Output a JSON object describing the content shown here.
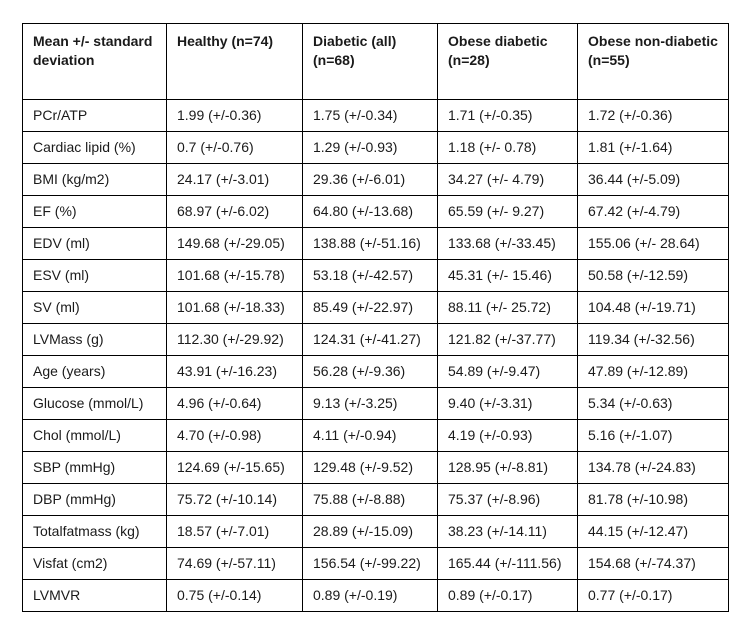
{
  "table": {
    "columns": [
      "Mean +/- standard deviation",
      "Healthy (n=74)",
      "Diabetic (all) (n=68)",
      "Obese diabetic (n=28)",
      "Obese non-diabetic (n=55)"
    ],
    "rows": [
      {
        "label": "PCr/ATP",
        "values": [
          "1.99 (+/-0.36)",
          "1.75 (+/-0.34)",
          "1.71 (+/-0.35)",
          "1.72 (+/-0.36)"
        ]
      },
      {
        "label": "Cardiac lipid (%)",
        "values": [
          "0.7 (+/-0.76)",
          "1.29 (+/-0.93)",
          "1.18 (+/- 0.78)",
          "1.81 (+/-1.64)"
        ]
      },
      {
        "label": "BMI (kg/m2)",
        "values": [
          "24.17 (+/-3.01)",
          "29.36 (+/-6.01)",
          "34.27 (+/- 4.79)",
          "36.44 (+/-5.09)"
        ]
      },
      {
        "label": "EF (%)",
        "values": [
          "68.97 (+/-6.02)",
          "64.80 (+/-13.68)",
          "65.59 (+/- 9.27)",
          "67.42 (+/-4.79)"
        ]
      },
      {
        "label": "EDV (ml)",
        "values": [
          "149.68 (+/-29.05)",
          "138.88 (+/-51.16)",
          "133.68 (+/-33.45)",
          "155.06 (+/- 28.64)"
        ]
      },
      {
        "label": "ESV (ml)",
        "values": [
          "101.68 (+/-15.78)",
          "53.18 (+/-42.57)",
          "45.31 (+/- 15.46)",
          "50.58 (+/-12.59)"
        ]
      },
      {
        "label": "SV (ml)",
        "values": [
          "101.68 (+/-18.33)",
          "85.49 (+/-22.97)",
          "88.11 (+/- 25.72)",
          "104.48 (+/-19.71)"
        ]
      },
      {
        "label": "LVMass (g)",
        "values": [
          "112.30 (+/-29.92)",
          "124.31 (+/-41.27)",
          "121.82 (+/-37.77)",
          "119.34 (+/-32.56)"
        ]
      },
      {
        "label": "Age (years)",
        "values": [
          "43.91 (+/-16.23)",
          "56.28 (+/-9.36)",
          "54.89 (+/-9.47)",
          "47.89 (+/-12.89)"
        ]
      },
      {
        "label": "Glucose (mmol/L)",
        "values": [
          "4.96 (+/-0.64)",
          "9.13 (+/-3.25)",
          "9.40 (+/-3.31)",
          "5.34 (+/-0.63)"
        ]
      },
      {
        "label": "Chol (mmol/L)",
        "values": [
          "4.70 (+/-0.98)",
          "4.11 (+/-0.94)",
          "4.19 (+/-0.93)",
          "5.16 (+/-1.07)"
        ]
      },
      {
        "label": "SBP (mmHg)",
        "values": [
          "124.69 (+/-15.65)",
          "129.48 (+/-9.52)",
          "128.95 (+/-8.81)",
          "134.78 (+/-24.83)"
        ]
      },
      {
        "label": "DBP (mmHg)",
        "values": [
          "75.72 (+/-10.14)",
          "75.88 (+/-8.88)",
          "75.37 (+/-8.96)",
          "81.78 (+/-10.98)"
        ]
      },
      {
        "label": "Totalfatmass (kg)",
        "values": [
          "18.57 (+/-7.01)",
          "28.89 (+/-15.09)",
          "38.23 (+/-14.11)",
          "44.15 (+/-12.47)"
        ]
      },
      {
        "label": "Visfat (cm2)",
        "values": [
          "74.69 (+/-57.11)",
          "156.54 (+/-99.22)",
          "165.44 (+/-111.56)",
          "154.68 (+/-74.37)"
        ]
      },
      {
        "label": "LVMVR",
        "values": [
          "0.75 (+/-0.14)",
          "0.89 (+/-0.19)",
          "0.89 (+/-0.17)",
          "0.77 (+/-0.17)"
        ]
      }
    ]
  },
  "chart_data": {
    "type": "table",
    "title": "Mean +/- standard deviation by group",
    "columns": [
      "Mean +/- standard deviation",
      "Healthy (n=74)",
      "Diabetic (all) (n=68)",
      "Obese diabetic (n=28)",
      "Obese non-diabetic (n=55)"
    ],
    "group_sizes": {
      "healthy": 74,
      "diabetic_all": 68,
      "obese_diabetic": 28,
      "obese_non_diabetic": 55
    },
    "variables": [
      "PCr/ATP",
      "Cardiac lipid (%)",
      "BMI (kg/m2)",
      "EF (%)",
      "EDV (ml)",
      "ESV (ml)",
      "SV (ml)",
      "LVMass (g)",
      "Age (years)",
      "Glucose (mmol/L)",
      "Chol (mmol/L)",
      "SBP (mmHg)",
      "DBP (mmHg)",
      "Totalfatmass (kg)",
      "Visfat (cm2)",
      "LVMVR"
    ],
    "series": [
      {
        "name": "Healthy (n=74)",
        "mean": [
          1.99,
          0.7,
          24.17,
          68.97,
          149.68,
          101.68,
          101.68,
          112.3,
          43.91,
          4.96,
          4.7,
          124.69,
          75.72,
          18.57,
          74.69,
          0.75
        ],
        "sd": [
          0.36,
          0.76,
          3.01,
          6.02,
          29.05,
          15.78,
          18.33,
          29.92,
          16.23,
          0.64,
          0.98,
          15.65,
          10.14,
          7.01,
          57.11,
          0.14
        ]
      },
      {
        "name": "Diabetic (all) (n=68)",
        "mean": [
          1.75,
          1.29,
          29.36,
          64.8,
          138.88,
          53.18,
          85.49,
          124.31,
          56.28,
          9.13,
          4.11,
          129.48,
          75.88,
          28.89,
          156.54,
          0.89
        ],
        "sd": [
          0.34,
          0.93,
          6.01,
          13.68,
          51.16,
          42.57,
          22.97,
          41.27,
          9.36,
          3.25,
          0.94,
          9.52,
          8.88,
          15.09,
          99.22,
          0.19
        ]
      },
      {
        "name": "Obese diabetic (n=28)",
        "mean": [
          1.71,
          1.18,
          34.27,
          65.59,
          133.68,
          45.31,
          88.11,
          121.82,
          54.89,
          9.4,
          4.19,
          128.95,
          75.37,
          38.23,
          165.44,
          0.89
        ],
        "sd": [
          0.35,
          0.78,
          4.79,
          9.27,
          33.45,
          15.46,
          25.72,
          37.77,
          9.47,
          3.31,
          0.93,
          8.81,
          8.96,
          14.11,
          111.56,
          0.17
        ]
      },
      {
        "name": "Obese non-diabetic (n=55)",
        "mean": [
          1.72,
          1.81,
          36.44,
          67.42,
          155.06,
          50.58,
          104.48,
          119.34,
          47.89,
          5.34,
          5.16,
          134.78,
          81.78,
          44.15,
          154.68,
          0.77
        ],
        "sd": [
          0.36,
          1.64,
          5.09,
          4.79,
          28.64,
          12.59,
          19.71,
          32.56,
          12.89,
          0.63,
          1.07,
          24.83,
          10.98,
          12.47,
          74.37,
          0.17
        ]
      }
    ],
    "layout": {
      "grid": "full-borders",
      "header_bold": true,
      "background": "#ffffff",
      "border_color": "#000000"
    }
  }
}
